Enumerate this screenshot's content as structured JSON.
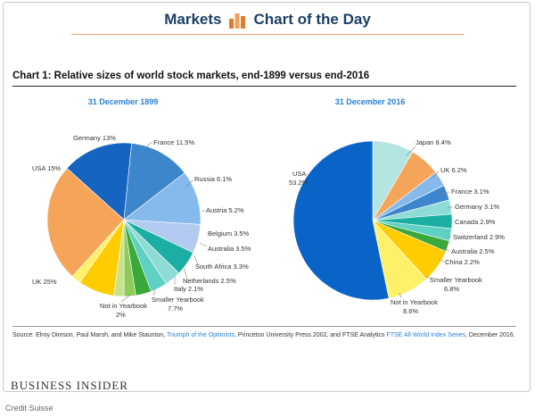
{
  "header": {
    "left_text": "Markets",
    "right_text": "Chart of the Day",
    "logo_icon": "bar-chart-logo-icon"
  },
  "chart_title": "Chart 1: Relative sizes of world stock markets, end-1899 versus end-2016",
  "chart_data": [
    {
      "type": "pie",
      "title": "31 December 1899",
      "slices": [
        {
          "label": "USA",
          "value": 15,
          "display": "USA 15%",
          "color": "#1565c0"
        },
        {
          "label": "Germany",
          "value": 13,
          "display": "Germany 13%",
          "color": "#3d86cc"
        },
        {
          "label": "France",
          "value": 11.5,
          "display": "France 11.5%",
          "color": "#86b9ec"
        },
        {
          "label": "Russia",
          "value": 6.1,
          "display": "Russia 6.1%",
          "color": "#b3cbf0"
        },
        {
          "label": "Austria",
          "value": 5.2,
          "display": "Austria 5.2%",
          "color": "#1bafa3"
        },
        {
          "label": "Belgium",
          "value": 3.5,
          "display": "Belgium 3.5%",
          "color": "#8fdcd6"
        },
        {
          "label": "Australia",
          "value": 3.5,
          "display": "Australia 3.5%",
          "color": "#5fd0c4"
        },
        {
          "label": "South Africa",
          "value": 3.3,
          "display": "South Africa 3.3%",
          "color": "#3aa83a"
        },
        {
          "label": "Netherlands",
          "value": 2.5,
          "display": "Netherlands 2.5%",
          "color": "#8fcb5b"
        },
        {
          "label": "Italy",
          "value": 2.1,
          "display": "Italy 2.1%",
          "color": "#c6e38c"
        },
        {
          "label": "Smaller Yearbook",
          "value": 7.7,
          "display": "Smaller Yearbook 7.7%",
          "color": "#ffcc00"
        },
        {
          "label": "Not in Yearbook",
          "value": 2,
          "display": "Not in Yearbook 2%",
          "color": "#fff06a"
        },
        {
          "label": "UK",
          "value": 25,
          "display": "UK 25%",
          "color": "#f5a55a"
        }
      ]
    },
    {
      "type": "pie",
      "title": "31 December 2016",
      "slices": [
        {
          "label": "Japan",
          "value": 8.4,
          "display": "Japan 8.4%",
          "color": "#b5e5e3"
        },
        {
          "label": "UK",
          "value": 6.2,
          "display": "UK 6.2%",
          "color": "#f5a55a"
        },
        {
          "label": "France",
          "value": 3.1,
          "display": "France 3.1%",
          "color": "#86b9ec"
        },
        {
          "label": "Germany",
          "value": 3.1,
          "display": "Germany 3.1%",
          "color": "#3d86cc"
        },
        {
          "label": "Canada",
          "value": 2.9,
          "display": "Canada 2.9%",
          "color": "#8fdcd6"
        },
        {
          "label": "Switzerland",
          "value": 2.9,
          "display": "Switzerland 2.9%",
          "color": "#1bafa3"
        },
        {
          "label": "Australia",
          "value": 2.5,
          "display": "Australia 2.5%",
          "color": "#5fd0c4"
        },
        {
          "label": "China",
          "value": 2.2,
          "display": "China 2.2%",
          "color": "#3aa83a"
        },
        {
          "label": "Smaller Yearbook",
          "value": 6.8,
          "display": "Smaller Yearbook 6.8%",
          "color": "#ffcc00"
        },
        {
          "label": "Not in Yearbook",
          "value": 8.6,
          "display": "Not in Yearbook 8.6%",
          "color": "#fff06a"
        },
        {
          "label": "USA",
          "value": 53.2,
          "display": "USA 53.2%",
          "color": "#0a64c8"
        }
      ]
    }
  ],
  "labels_1899": {
    "usa": "USA 15%",
    "germany": "Germany 13%",
    "france": "France 11.5%",
    "russia": "Russia 6.1%",
    "austria": "Austria 5.2%",
    "belgium": "Belgium 3.5%",
    "australia": "Australia 3.5%",
    "south_africa": "South Africa 3.3%",
    "netherlands": "Netherlands 2.5%",
    "italy": "Italy 2.1%",
    "smaller_1": "Smaller Yearbook",
    "smaller_2": "7.7%",
    "notin_1": "Not in Yearbook",
    "notin_2": "2%",
    "uk": "UK 25%"
  },
  "labels_2016": {
    "usa_1": "USA",
    "usa_2": "53.2%",
    "japan": "Japan  8.4%",
    "uk": "UK 6.2%",
    "france": "France 3.1%",
    "germany": "Germany  3.1%",
    "canada": "Canada 2.9%",
    "switzerland": "Switzerland 2.9%",
    "australia": "Australia 2.5%",
    "china": "China 2.2%",
    "smaller_1": "Smaller Yearbook",
    "smaller_2": "6.8%",
    "notin_1": "Not in Yearbook",
    "notin_2": "8.6%"
  },
  "source": {
    "prefix": "Source: Elroy Dimson, Paul Marsh, and Mike Staunton, ",
    "book": "Triumph of the Optimists",
    "middle": ", Princeton University Press 2002, and FTSE Analytics ",
    "series": "FTSE All-World Index Series",
    "suffix": ", December 2016."
  },
  "brand": "BUSINESS INSIDER",
  "credit": "Credit Suisse",
  "colors": {
    "title_blue": "#2a7fd4",
    "header_navy": "#1d3f66",
    "logo_orange": "#e07b2e"
  }
}
